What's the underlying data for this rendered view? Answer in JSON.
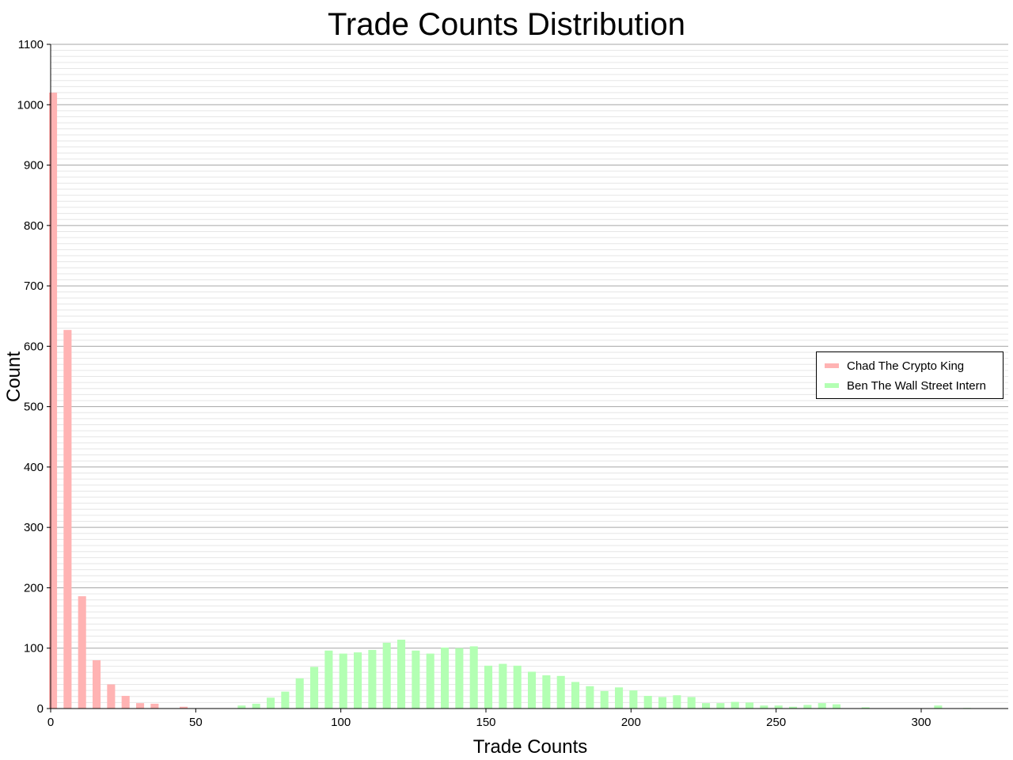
{
  "chart_data": {
    "type": "bar",
    "title": "Trade Counts Distribution",
    "xlabel": "Trade Counts",
    "ylabel": "Count",
    "xlim": [
      0,
      330
    ],
    "ylim": [
      0,
      1100
    ],
    "xticks": [
      0,
      50,
      100,
      150,
      200,
      250,
      300
    ],
    "yticks": [
      0,
      100,
      200,
      300,
      400,
      500,
      600,
      700,
      800,
      900,
      1000,
      1100
    ],
    "grid": true,
    "legend_position": "right",
    "series": [
      {
        "name": "Chad The Crypto King",
        "color": "#ffb3b3",
        "x": [
          0,
          5,
          10,
          15,
          20,
          25,
          30,
          35,
          45
        ],
        "values": [
          1020,
          627,
          186,
          80,
          40,
          21,
          9,
          8,
          3
        ]
      },
      {
        "name": "Ben The Wall Street Intern",
        "color": "#b3ffb3",
        "x": [
          65,
          70,
          75,
          80,
          85,
          90,
          95,
          100,
          105,
          110,
          115,
          120,
          125,
          130,
          135,
          140,
          145,
          150,
          155,
          160,
          165,
          170,
          175,
          180,
          185,
          190,
          195,
          200,
          205,
          210,
          215,
          220,
          225,
          230,
          235,
          240,
          245,
          250,
          255,
          260,
          265,
          270,
          280,
          305,
          315
        ],
        "values": [
          5,
          8,
          18,
          28,
          50,
          69,
          96,
          91,
          93,
          97,
          109,
          114,
          96,
          91,
          101,
          100,
          103,
          71,
          74,
          71,
          61,
          55,
          54,
          44,
          37,
          29,
          35,
          30,
          21,
          19,
          22,
          19,
          9,
          9,
          11,
          10,
          5,
          5,
          3,
          6,
          9,
          7,
          2,
          5,
          1
        ]
      }
    ]
  }
}
